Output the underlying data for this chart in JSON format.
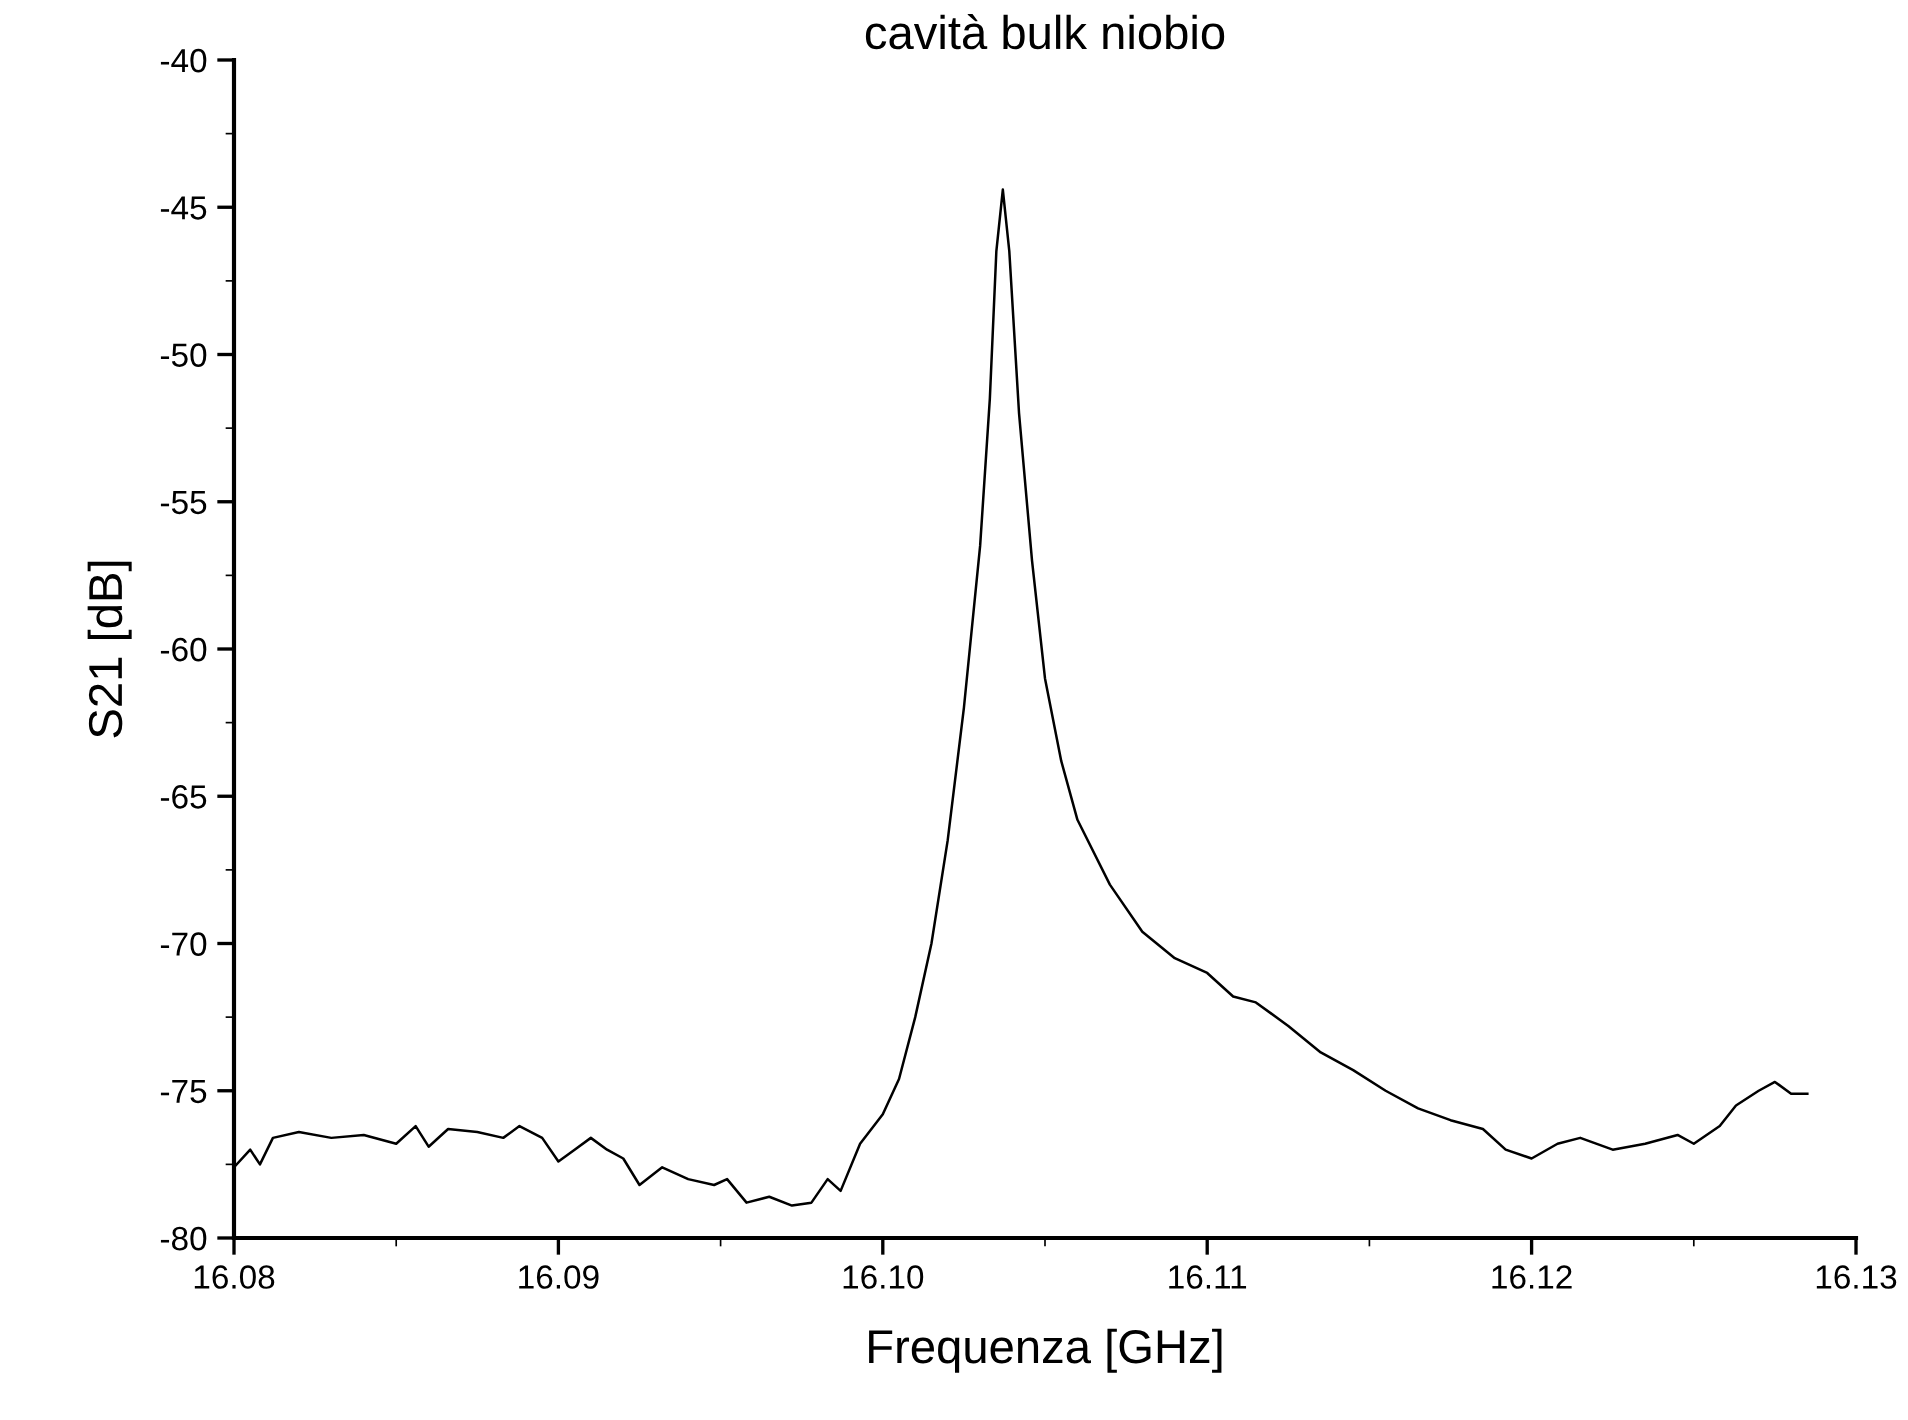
{
  "chart_data": {
    "type": "line",
    "title": "cavità bulk niobio",
    "xlabel": "Frequenza [GHz]",
    "ylabel": "S21 [dB]",
    "xlim": [
      16.08,
      16.13
    ],
    "xticks": [
      {
        "value": 16.08,
        "label": "16.08"
      },
      {
        "value": 16.09,
        "label": "16.09"
      },
      {
        "value": 16.1,
        "label": "16.10"
      },
      {
        "value": 16.11,
        "label": "16.11"
      },
      {
        "value": 16.12,
        "label": "16.12"
      },
      {
        "value": 16.13,
        "label": "16.13"
      }
    ],
    "ylim": [
      -80,
      -40
    ],
    "yticks": [
      -80,
      -75,
      -70,
      -65,
      -60,
      -55,
      -50,
      -45,
      -40
    ],
    "grid": false,
    "legend": false,
    "marker": "none",
    "line_style": "solid",
    "series": [
      {
        "color": "#000000",
        "x": [
          16.08,
          16.0805,
          16.0808,
          16.0812,
          16.082,
          16.083,
          16.084,
          16.085,
          16.0856,
          16.086,
          16.0866,
          16.0875,
          16.0883,
          16.0888,
          16.0895,
          16.09,
          16.0905,
          16.091,
          16.0915,
          16.092,
          16.0925,
          16.0932,
          16.094,
          16.0948,
          16.0952,
          16.0958,
          16.0965,
          16.0972,
          16.0978,
          16.0983,
          16.0987,
          16.0993,
          16.1,
          16.1005,
          16.101,
          16.1015,
          16.102,
          16.1025,
          16.103,
          16.1033,
          16.1035,
          16.1037,
          16.1039,
          16.1042,
          16.1046,
          16.105,
          16.1055,
          16.106,
          16.107,
          16.108,
          16.109,
          16.11,
          16.1108,
          16.1115,
          16.1125,
          16.1135,
          16.1145,
          16.1155,
          16.1165,
          16.1175,
          16.1185,
          16.1192,
          16.12,
          16.1208,
          16.1215,
          16.1225,
          16.1235,
          16.1245,
          16.125,
          16.1258,
          16.1263,
          16.127,
          16.1275,
          16.128,
          16.1285
        ],
        "values": [
          -77.6,
          -77.0,
          -77.5,
          -76.6,
          -76.4,
          -76.6,
          -76.5,
          -76.8,
          -76.2,
          -76.9,
          -76.3,
          -76.4,
          -76.6,
          -76.2,
          -76.6,
          -77.4,
          -77.0,
          -76.6,
          -77.0,
          -77.3,
          -78.2,
          -77.6,
          -78.0,
          -78.2,
          -78.0,
          -78.8,
          -78.6,
          -78.9,
          -78.8,
          -78.0,
          -78.4,
          -76.8,
          -75.8,
          -74.6,
          -72.5,
          -70.0,
          -66.5,
          -62.0,
          -56.5,
          -51.5,
          -46.5,
          -44.4,
          -46.5,
          -52.0,
          -57.0,
          -61.0,
          -63.8,
          -65.8,
          -68.0,
          -69.6,
          -70.5,
          -71.0,
          -71.8,
          -72.0,
          -72.8,
          -73.7,
          -74.3,
          -75.0,
          -75.6,
          -76.0,
          -76.3,
          -77.0,
          -77.3,
          -76.8,
          -76.6,
          -77.0,
          -76.8,
          -76.5,
          -76.8,
          -76.2,
          -75.5,
          -75.0,
          -74.7,
          -75.1,
          -75.1
        ]
      }
    ]
  }
}
